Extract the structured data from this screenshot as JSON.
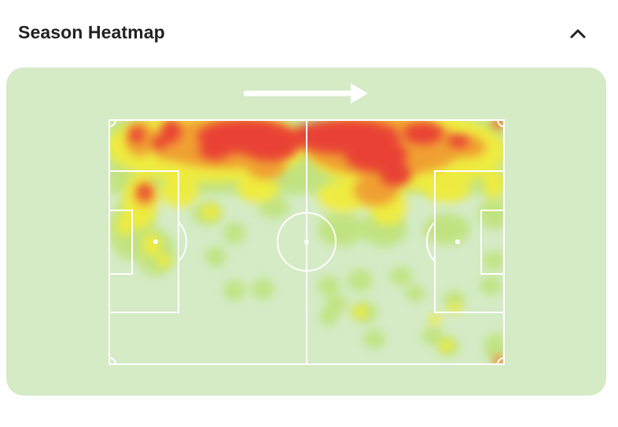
{
  "header": {
    "title": "Season Heatmap",
    "collapse_icon": "chevron-up-icon"
  },
  "heatmap": {
    "direction_icon": "arrow-right-icon",
    "colors": {
      "card_background": "#d4ebc6",
      "low": "#b8e07a",
      "mid": "#f1ec3c",
      "high": "#f0a030",
      "max": "#e94335",
      "lines": "#ffffff"
    }
  }
}
